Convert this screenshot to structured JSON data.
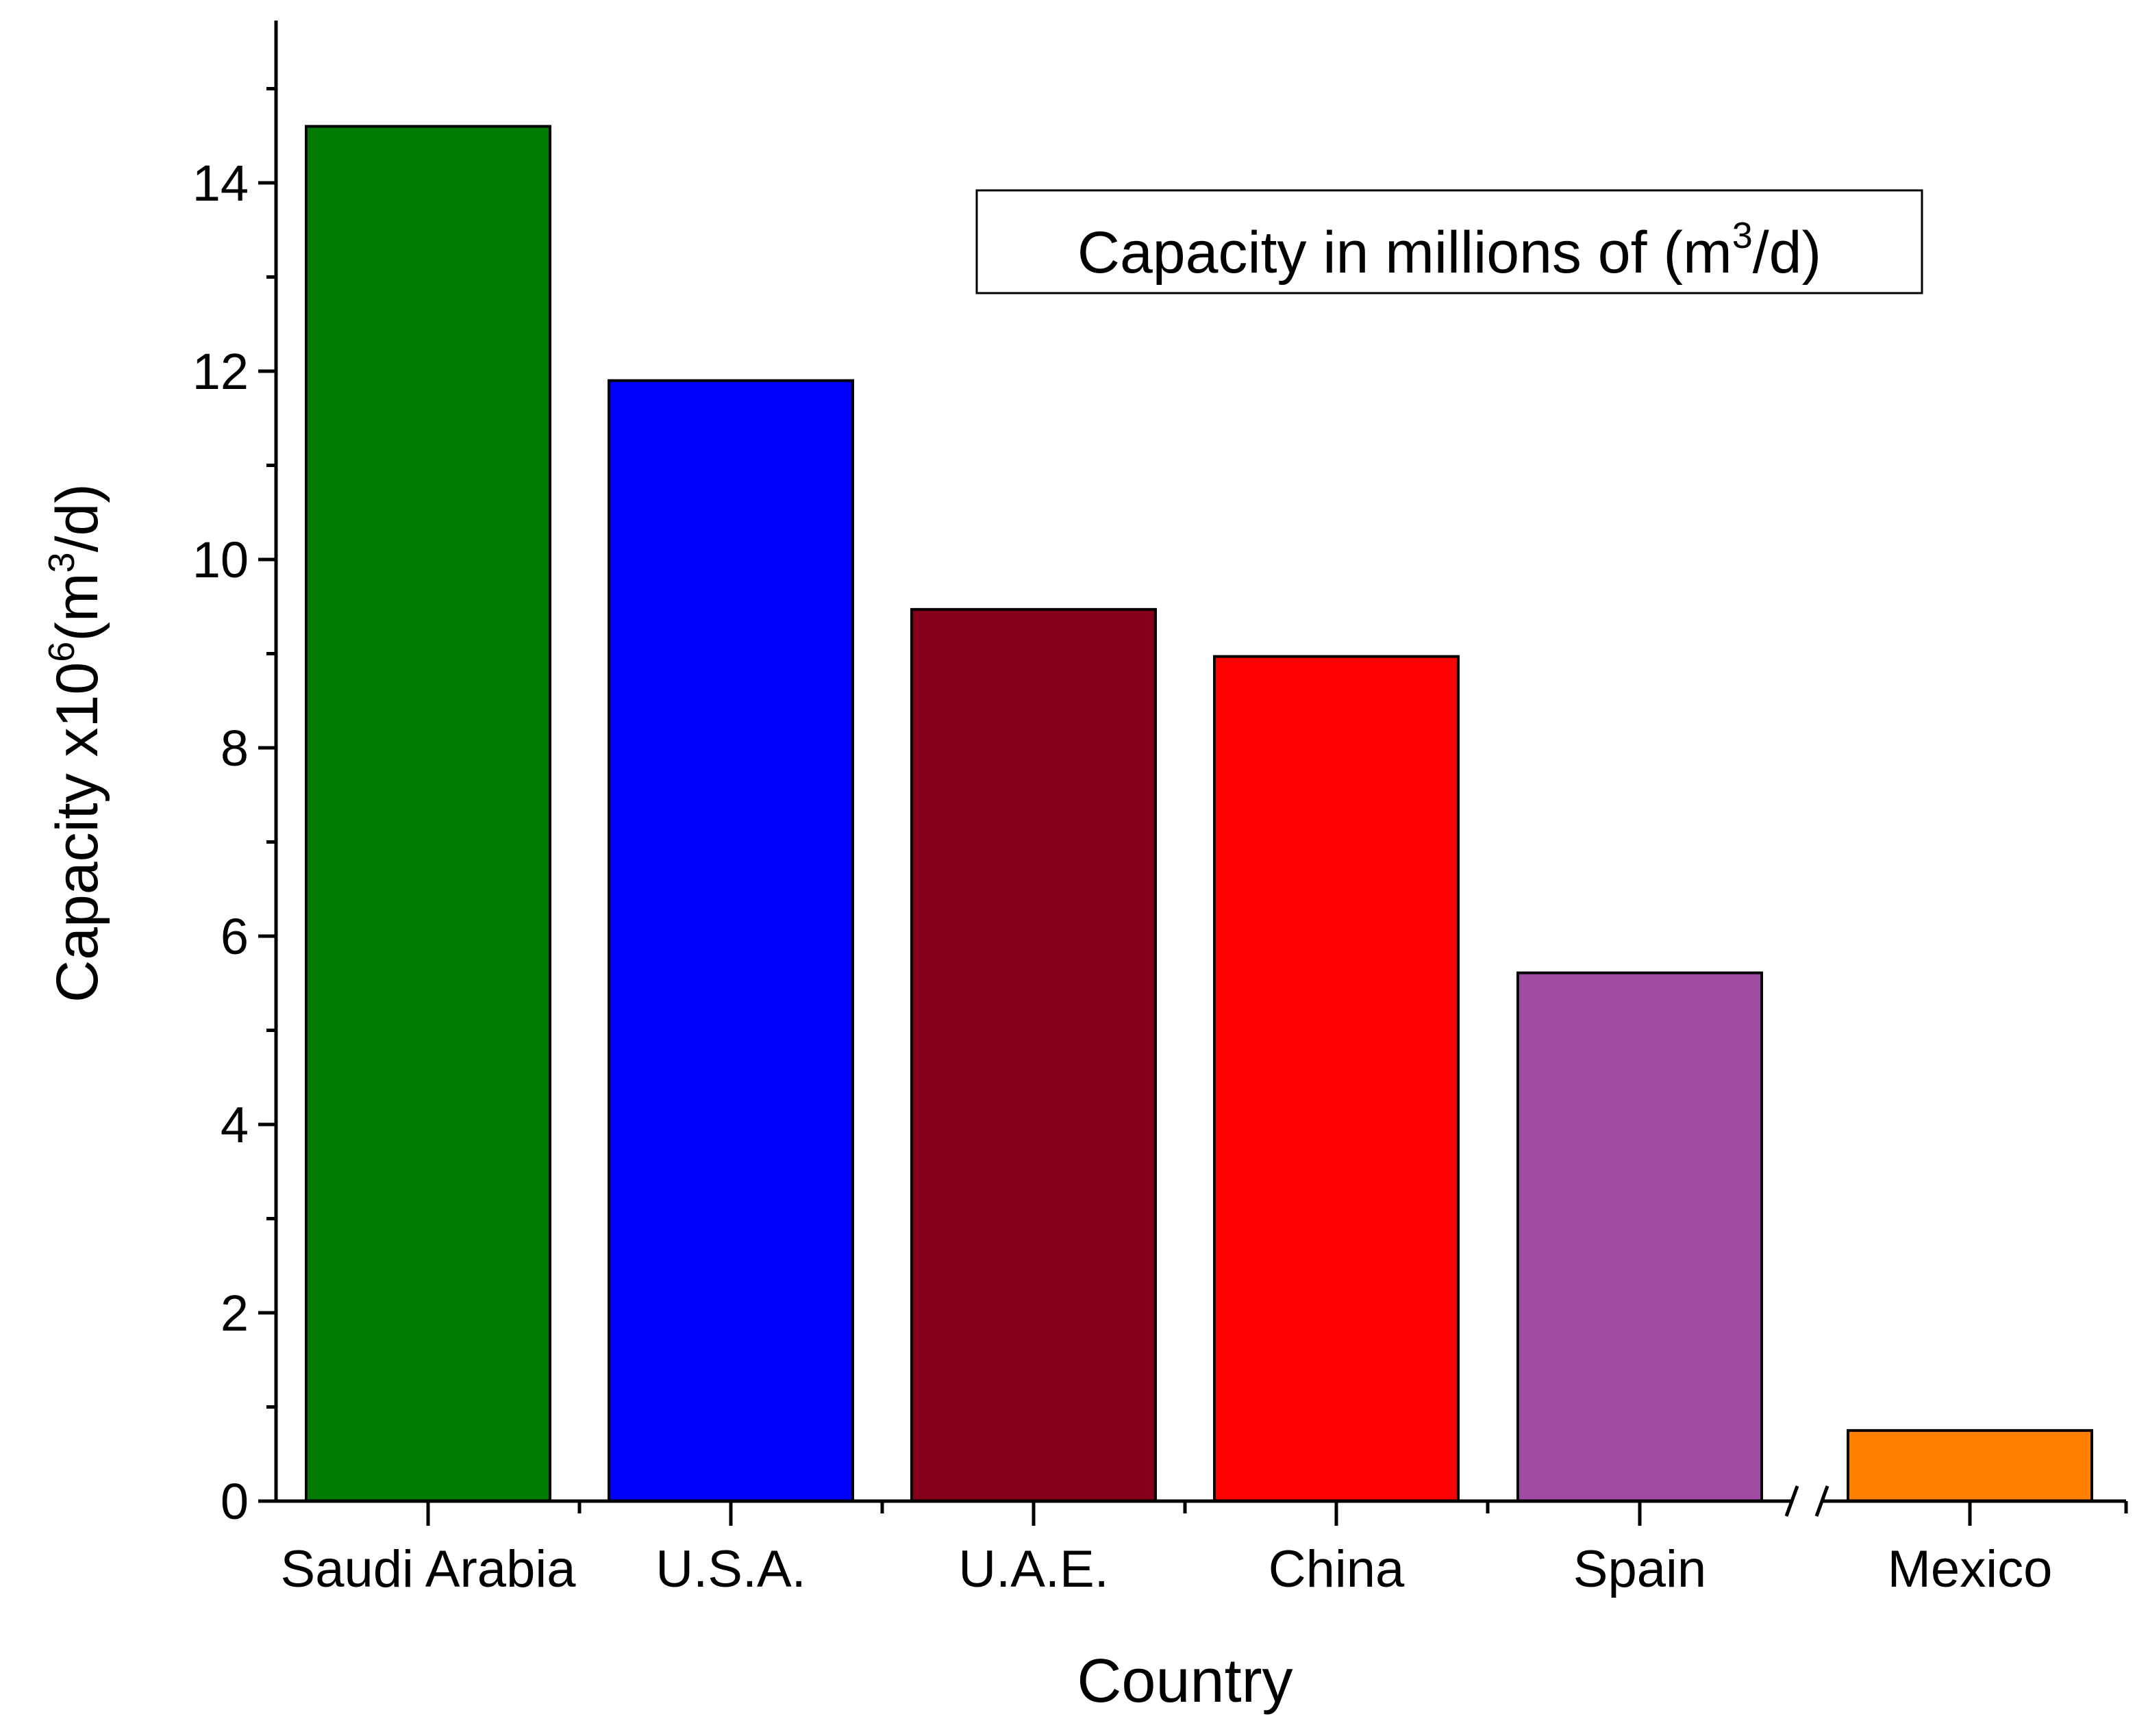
{
  "chart_data": {
    "type": "bar",
    "title": "",
    "xlabel": "Country",
    "ylabel": {
      "main": "Capacity x10",
      "exp": "6",
      "unit_pre": "(m",
      "unit_exp": "3",
      "unit_post": "/d)"
    },
    "categories": [
      "Saudi Arabia",
      "U.S.A.",
      "U.A.E.",
      "China",
      "Spain",
      "Mexico"
    ],
    "values": [
      14.6,
      11.9,
      9.47,
      8.97,
      5.61,
      0.75
    ],
    "colors": [
      "#007A00",
      "#0000FF",
      "#84001A",
      "#FF0000",
      "#A04AA3",
      "#FF8000"
    ],
    "ylim": [
      0,
      15.9
    ],
    "yticks": [
      "0",
      "2",
      "4",
      "6",
      "8",
      "10",
      "12",
      "14"
    ],
    "grid": false,
    "axis_break": "between Spain and Mexico",
    "annotation": {
      "pre": "Capacity in millions of (m",
      "exp": "3",
      "post": "/d)"
    }
  }
}
